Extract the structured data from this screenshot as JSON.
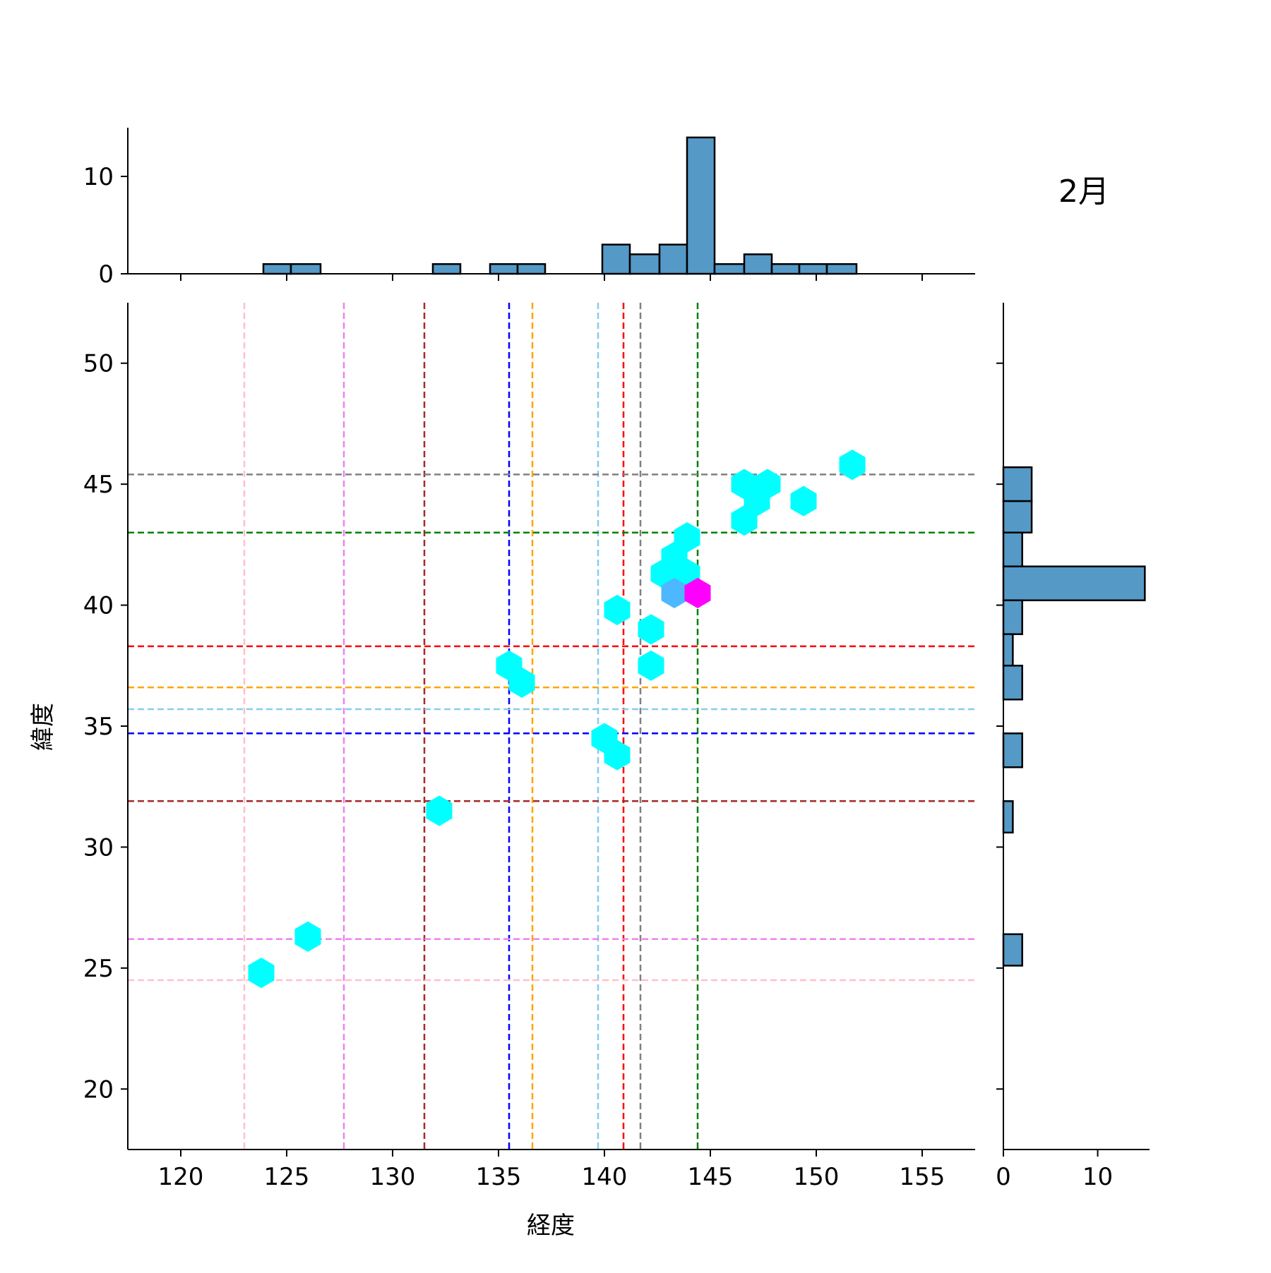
{
  "chart_data": {
    "type": "hexbin-jointplot",
    "title": "2月",
    "xlabel": "経度",
    "ylabel": "緯度",
    "xlim": [
      117.5,
      157.5
    ],
    "ylim": [
      17.5,
      52.5
    ],
    "x_ticks": [
      120,
      125,
      130,
      135,
      140,
      145,
      150,
      155
    ],
    "y_ticks": [
      20,
      25,
      30,
      35,
      40,
      45,
      50
    ],
    "vlines": [
      {
        "x": 123.0,
        "color": "#ffc0cb"
      },
      {
        "x": 127.7,
        "color": "#ee82ee"
      },
      {
        "x": 131.5,
        "color": "#a52a2a"
      },
      {
        "x": 135.5,
        "color": "#0000ff"
      },
      {
        "x": 136.6,
        "color": "#ffa500"
      },
      {
        "x": 139.7,
        "color": "#87ceeb"
      },
      {
        "x": 140.9,
        "color": "#ff0000"
      },
      {
        "x": 141.7,
        "color": "#808080"
      },
      {
        "x": 144.4,
        "color": "#008000"
      }
    ],
    "hlines": [
      {
        "y": 45.4,
        "color": "#808080"
      },
      {
        "y": 43.0,
        "color": "#008000"
      },
      {
        "y": 38.3,
        "color": "#ff0000"
      },
      {
        "y": 36.6,
        "color": "#ffa500"
      },
      {
        "y": 35.7,
        "color": "#87ceeb"
      },
      {
        "y": 34.7,
        "color": "#0000ff"
      },
      {
        "y": 31.9,
        "color": "#a52a2a"
      },
      {
        "y": 26.2,
        "color": "#ee82ee"
      },
      {
        "y": 24.5,
        "color": "#ffc0cb"
      }
    ],
    "hexbins": [
      {
        "x": 151.7,
        "y": 45.8,
        "color": "#00ffff"
      },
      {
        "x": 146.6,
        "y": 45.0,
        "color": "#00ffff"
      },
      {
        "x": 147.7,
        "y": 45.0,
        "color": "#00ffff"
      },
      {
        "x": 147.2,
        "y": 44.3,
        "color": "#00ffff"
      },
      {
        "x": 149.4,
        "y": 44.3,
        "color": "#00ffff"
      },
      {
        "x": 146.6,
        "y": 43.5,
        "color": "#00ffff"
      },
      {
        "x": 143.9,
        "y": 42.8,
        "color": "#00ffff"
      },
      {
        "x": 143.3,
        "y": 42.0,
        "color": "#00ffff"
      },
      {
        "x": 142.8,
        "y": 41.3,
        "color": "#00ffff"
      },
      {
        "x": 143.9,
        "y": 41.3,
        "color": "#00ffff"
      },
      {
        "x": 143.3,
        "y": 40.5,
        "color": "#4db8ff"
      },
      {
        "x": 144.4,
        "y": 40.5,
        "color": "#ff00ff"
      },
      {
        "x": 140.6,
        "y": 39.8,
        "color": "#00ffff"
      },
      {
        "x": 142.2,
        "y": 39.0,
        "color": "#00ffff"
      },
      {
        "x": 142.2,
        "y": 37.5,
        "color": "#00ffff"
      },
      {
        "x": 135.5,
        "y": 37.5,
        "color": "#00ffff"
      },
      {
        "x": 136.1,
        "y": 36.8,
        "color": "#00ffff"
      },
      {
        "x": 140.0,
        "y": 34.5,
        "color": "#00ffff"
      },
      {
        "x": 140.6,
        "y": 33.8,
        "color": "#00ffff"
      },
      {
        "x": 132.2,
        "y": 31.5,
        "color": "#00ffff"
      },
      {
        "x": 126.0,
        "y": 26.3,
        "color": "#00ffff"
      },
      {
        "x": 123.8,
        "y": 24.8,
        "color": "#00ffff"
      }
    ],
    "top_hist": {
      "ylim": [
        0,
        15
      ],
      "y_ticks": [
        0,
        10
      ],
      "bins": [
        {
          "x0": 123.9,
          "x1": 125.2,
          "count": 1
        },
        {
          "x0": 125.2,
          "x1": 126.6,
          "count": 1
        },
        {
          "x0": 126.6,
          "x1": 127.9,
          "count": 0
        },
        {
          "x0": 127.9,
          "x1": 129.2,
          "count": 0
        },
        {
          "x0": 129.2,
          "x1": 130.6,
          "count": 0
        },
        {
          "x0": 130.6,
          "x1": 131.9,
          "count": 0
        },
        {
          "x0": 131.9,
          "x1": 133.2,
          "count": 1
        },
        {
          "x0": 133.2,
          "x1": 134.6,
          "count": 0
        },
        {
          "x0": 134.6,
          "x1": 135.9,
          "count": 1
        },
        {
          "x0": 135.9,
          "x1": 137.2,
          "count": 1
        },
        {
          "x0": 137.2,
          "x1": 138.6,
          "count": 0
        },
        {
          "x0": 138.6,
          "x1": 139.9,
          "count": 0
        },
        {
          "x0": 139.9,
          "x1": 141.2,
          "count": 3
        },
        {
          "x0": 141.2,
          "x1": 142.6,
          "count": 2
        },
        {
          "x0": 142.6,
          "x1": 143.9,
          "count": 3
        },
        {
          "x0": 143.9,
          "x1": 145.2,
          "count": 14
        },
        {
          "x0": 145.2,
          "x1": 146.6,
          "count": 1
        },
        {
          "x0": 146.6,
          "x1": 147.9,
          "count": 2
        },
        {
          "x0": 147.9,
          "x1": 149.2,
          "count": 1
        },
        {
          "x0": 149.2,
          "x1": 150.5,
          "count": 1
        },
        {
          "x0": 150.5,
          "x1": 151.9,
          "count": 1
        }
      ]
    },
    "right_hist": {
      "xlim": [
        0,
        15.5
      ],
      "x_ticks": [
        0,
        10
      ],
      "bins": [
        {
          "y0": 44.3,
          "y1": 45.7,
          "count": 3
        },
        {
          "y0": 43.0,
          "y1": 44.3,
          "count": 3
        },
        {
          "y0": 41.6,
          "y1": 43.0,
          "count": 2
        },
        {
          "y0": 40.2,
          "y1": 41.6,
          "count": 15
        },
        {
          "y0": 38.8,
          "y1": 40.2,
          "count": 2
        },
        {
          "y0": 37.5,
          "y1": 38.8,
          "count": 1
        },
        {
          "y0": 36.1,
          "y1": 37.5,
          "count": 2
        },
        {
          "y0": 34.7,
          "y1": 36.1,
          "count": 0
        },
        {
          "y0": 33.3,
          "y1": 34.7,
          "count": 2
        },
        {
          "y0": 31.9,
          "y1": 33.3,
          "count": 0
        },
        {
          "y0": 30.6,
          "y1": 31.9,
          "count": 1
        },
        {
          "y0": 29.2,
          "y1": 30.6,
          "count": 0
        },
        {
          "y0": 27.8,
          "y1": 29.2,
          "count": 0
        },
        {
          "y0": 26.4,
          "y1": 27.8,
          "count": 0
        },
        {
          "y0": 25.1,
          "y1": 26.4,
          "count": 2
        }
      ]
    },
    "bar_color": "#5599c7",
    "bar_edge_color": "#000000"
  }
}
